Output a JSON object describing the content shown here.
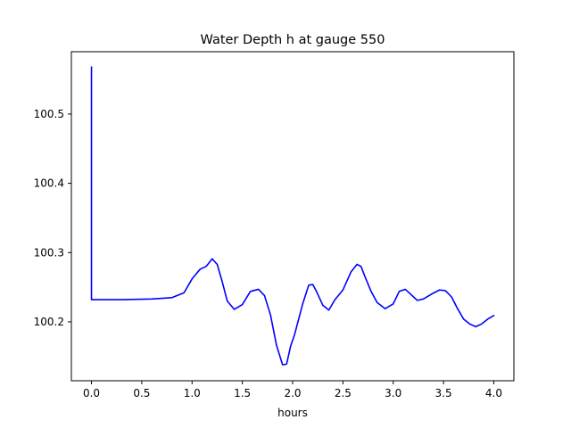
{
  "chart_data": {
    "type": "line",
    "title": "Water Depth h at gauge 550",
    "xlabel": "hours",
    "ylabel": "",
    "xlim": [
      -0.2,
      4.2
    ],
    "ylim": [
      100.115,
      100.59
    ],
    "xticks": [
      0.0,
      0.5,
      1.0,
      1.5,
      2.0,
      2.5,
      3.0,
      3.5,
      4.0
    ],
    "xtick_labels": [
      "0.0",
      "0.5",
      "1.0",
      "1.5",
      "2.0",
      "2.5",
      "3.0",
      "3.5",
      "4.0"
    ],
    "yticks": [
      100.2,
      100.3,
      100.4,
      100.5
    ],
    "ytick_labels": [
      "100.2",
      "100.3",
      "100.4",
      "100.5"
    ],
    "grid": false,
    "series": [
      {
        "color": "#0000ff",
        "x": [
          0.0,
          0.0,
          0.05,
          0.3,
          0.6,
          0.8,
          0.92,
          1.0,
          1.08,
          1.14,
          1.2,
          1.25,
          1.3,
          1.35,
          1.42,
          1.5,
          1.58,
          1.66,
          1.72,
          1.78,
          1.84,
          1.9,
          1.94,
          1.98,
          2.02,
          2.1,
          2.16,
          2.2,
          2.24,
          2.3,
          2.36,
          2.42,
          2.5,
          2.58,
          2.64,
          2.68,
          2.72,
          2.78,
          2.84,
          2.92,
          3.0,
          3.06,
          3.12,
          3.18,
          3.24,
          3.3,
          3.38,
          3.46,
          3.52,
          3.58,
          3.64,
          3.7,
          3.76,
          3.82,
          3.88,
          3.94,
          4.0
        ],
        "y": [
          100.568,
          100.232,
          100.232,
          100.232,
          100.233,
          100.235,
          100.242,
          100.262,
          100.276,
          100.28,
          100.291,
          100.283,
          100.258,
          100.23,
          100.218,
          100.225,
          100.244,
          100.247,
          100.238,
          100.21,
          100.166,
          100.138,
          100.139,
          100.165,
          100.182,
          100.226,
          100.253,
          100.254,
          100.243,
          100.224,
          100.217,
          100.232,
          100.246,
          100.272,
          100.283,
          100.28,
          100.265,
          100.244,
          100.228,
          100.219,
          100.226,
          100.244,
          100.247,
          100.239,
          100.231,
          100.233,
          100.24,
          100.246,
          100.245,
          100.236,
          100.219,
          100.204,
          100.197,
          100.193,
          100.197,
          100.204,
          100.209
        ]
      }
    ]
  }
}
